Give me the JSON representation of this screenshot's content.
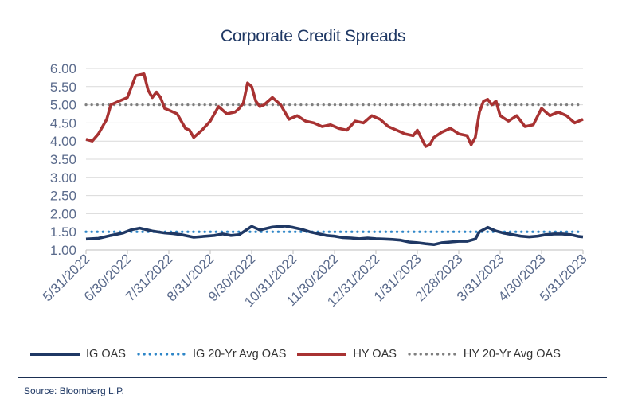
{
  "title": "Corporate Credit Spreads",
  "source": "Source: Bloomberg L.P.",
  "chart_data": {
    "type": "line",
    "title": "Corporate Credit Spreads",
    "xlabel": "",
    "ylabel": "",
    "ylim": [
      1.0,
      6.0
    ],
    "yticks": [
      "6.00",
      "5.50",
      "5.00",
      "4.50",
      "4.00",
      "3.50",
      "3.00",
      "2.50",
      "2.00",
      "1.50",
      "1.00"
    ],
    "xticks": [
      "5/31/2022",
      "6/30/2022",
      "7/31/2022",
      "8/31/2022",
      "9/30/2022",
      "10/31/2022",
      "11/30/2022",
      "12/31/2022",
      "1/31/2023",
      "2/28/2023",
      "3/31/2023",
      "4/30/2023",
      "5/31/2023"
    ],
    "grid": true,
    "legend": "bottom",
    "series": [
      {
        "name": "IG OAS",
        "color": "#1f3864",
        "style": "solid",
        "x": [
          0,
          0.3,
          0.6,
          0.9,
          1.1,
          1.3,
          1.6,
          1.9,
          2.1,
          2.3,
          2.6,
          2.9,
          3.1,
          3.3,
          3.5,
          3.7,
          4.0,
          4.2,
          4.5,
          4.8,
          5.0,
          5.2,
          5.4,
          5.6,
          5.8,
          6.0,
          6.2,
          6.4,
          6.6,
          6.8,
          7.0,
          7.2,
          7.4,
          7.6,
          7.8,
          8.0,
          8.2,
          8.4,
          8.6,
          8.8,
          9.0,
          9.2,
          9.4,
          9.5,
          9.7,
          9.9,
          10.1,
          10.3,
          10.5,
          10.7,
          10.9,
          11.1,
          11.3,
          11.5,
          11.7,
          11.9,
          12.0
        ],
        "values": [
          1.3,
          1.32,
          1.4,
          1.47,
          1.56,
          1.6,
          1.52,
          1.47,
          1.45,
          1.42,
          1.35,
          1.38,
          1.4,
          1.44,
          1.4,
          1.42,
          1.65,
          1.55,
          1.63,
          1.66,
          1.62,
          1.57,
          1.5,
          1.45,
          1.4,
          1.38,
          1.34,
          1.33,
          1.31,
          1.33,
          1.31,
          1.3,
          1.29,
          1.27,
          1.22,
          1.2,
          1.17,
          1.15,
          1.2,
          1.22,
          1.24,
          1.24,
          1.3,
          1.5,
          1.62,
          1.52,
          1.46,
          1.42,
          1.38,
          1.36,
          1.38,
          1.42,
          1.44,
          1.44,
          1.42,
          1.37,
          1.36
        ]
      },
      {
        "name": "IG 20-Yr Avg OAS",
        "color": "#2e86c8",
        "style": "dotted",
        "x": [
          0,
          12
        ],
        "values": [
          1.5,
          1.5
        ]
      },
      {
        "name": "HY OAS",
        "color": "#a83232",
        "style": "solid",
        "x": [
          0,
          0.15,
          0.3,
          0.5,
          0.6,
          0.8,
          1.0,
          1.2,
          1.4,
          1.5,
          1.6,
          1.7,
          1.8,
          1.9,
          2.0,
          2.2,
          2.4,
          2.5,
          2.6,
          2.8,
          3.0,
          3.2,
          3.4,
          3.6,
          3.7,
          3.8,
          3.9,
          4.0,
          4.1,
          4.2,
          4.3,
          4.5,
          4.7,
          4.9,
          5.1,
          5.3,
          5.5,
          5.7,
          5.9,
          6.1,
          6.3,
          6.5,
          6.7,
          6.9,
          7.1,
          7.3,
          7.5,
          7.7,
          7.9,
          8.0,
          8.2,
          8.3,
          8.4,
          8.6,
          8.8,
          9.0,
          9.2,
          9.3,
          9.4,
          9.5,
          9.6,
          9.7,
          9.8,
          9.9,
          10.0,
          10.2,
          10.4,
          10.6,
          10.8,
          11.0,
          11.2,
          11.4,
          11.6,
          11.8,
          12.0
        ],
        "values": [
          4.05,
          4.0,
          4.2,
          4.6,
          5.0,
          5.1,
          5.2,
          5.8,
          5.85,
          5.4,
          5.2,
          5.35,
          5.2,
          4.9,
          4.85,
          4.75,
          4.35,
          4.3,
          4.1,
          4.3,
          4.55,
          4.95,
          4.75,
          4.8,
          4.9,
          5.05,
          5.6,
          5.5,
          5.1,
          4.95,
          5.0,
          5.2,
          5.0,
          4.6,
          4.7,
          4.55,
          4.5,
          4.4,
          4.45,
          4.35,
          4.3,
          4.55,
          4.5,
          4.7,
          4.6,
          4.4,
          4.3,
          4.2,
          4.15,
          4.3,
          3.85,
          3.9,
          4.1,
          4.25,
          4.35,
          4.2,
          4.15,
          3.9,
          4.1,
          4.8,
          5.1,
          5.15,
          5.0,
          5.1,
          4.7,
          4.55,
          4.7,
          4.4,
          4.45,
          4.9,
          4.7,
          4.8,
          4.7,
          4.5,
          4.6
        ]
      },
      {
        "name": "HY 20-Yr Avg OAS",
        "color": "#7f7f7f",
        "style": "dotted",
        "x": [
          0,
          12
        ],
        "values": [
          5.0,
          5.0
        ]
      }
    ]
  }
}
